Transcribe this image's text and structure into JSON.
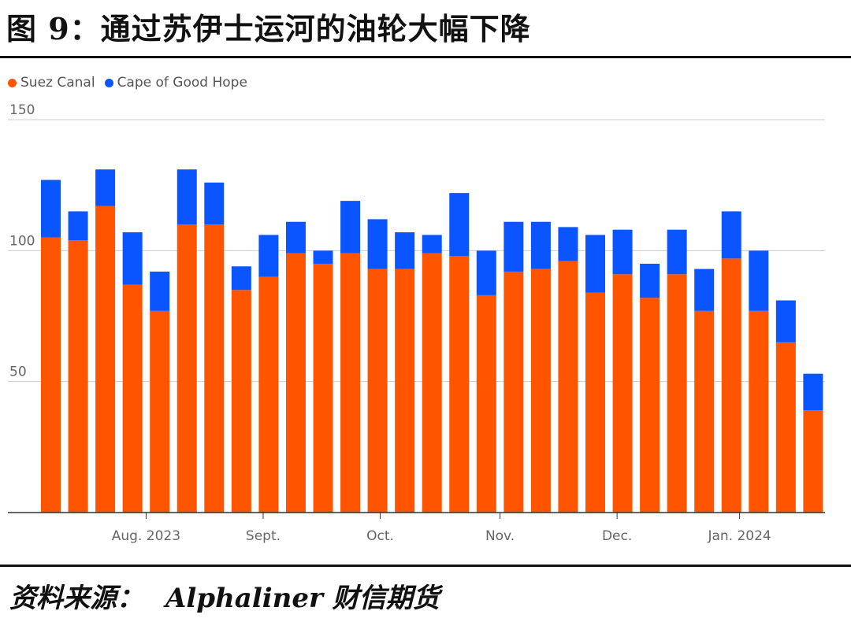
{
  "figure": {
    "title": "图 9：通过苏伊士运河的油轮大幅下降",
    "source_label": "资料来源：",
    "source_name": "Alphaliner 财信期货"
  },
  "colors": {
    "suez": "#FF5500",
    "cape": "#0A55FF"
  },
  "chart_data": {
    "type": "bar",
    "stacked": true,
    "series": [
      {
        "name": "Suez Canal",
        "values": [
          105,
          104,
          117,
          87,
          77,
          110,
          110,
          85,
          90,
          99,
          95,
          99,
          93,
          93,
          99,
          98,
          83,
          92,
          93,
          96,
          84,
          91,
          82,
          91,
          77,
          97,
          77,
          65,
          39
        ]
      },
      {
        "name": "Cape of Good Hope",
        "values": [
          22,
          11,
          14,
          20,
          15,
          21,
          16,
          9,
          16,
          12,
          5,
          20,
          19,
          14,
          7,
          24,
          17,
          19,
          18,
          13,
          22,
          17,
          13,
          17,
          16,
          18,
          23,
          16,
          14
        ]
      }
    ],
    "ylim": [
      0,
      150
    ],
    "yticks": [
      50,
      100,
      150
    ],
    "xtick_labels": [
      {
        "label": "Aug. 2023",
        "index": 3.5
      },
      {
        "label": "Sept.",
        "index": 7.8
      },
      {
        "label": "Oct.",
        "index": 12.1
      },
      {
        "label": "Nov.",
        "index": 16.5
      },
      {
        "label": "Dec.",
        "index": 20.8
      },
      {
        "label": "Jan. 2024",
        "index": 25.3
      }
    ],
    "grid": true,
    "legend_position": "top-left"
  }
}
